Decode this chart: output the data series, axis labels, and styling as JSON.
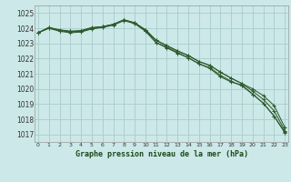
{
  "title": "Graphe pression niveau de la mer (hPa)",
  "background_color": "#cce8e8",
  "grid_color": "#aacccc",
  "line_color": "#2d5a2d",
  "ylim": [
    1016.5,
    1025.5
  ],
  "xlim": [
    -0.3,
    23.3
  ],
  "yticks": [
    1017,
    1018,
    1019,
    1020,
    1021,
    1022,
    1023,
    1024,
    1025
  ],
  "xticks": [
    0,
    1,
    2,
    3,
    4,
    5,
    6,
    7,
    8,
    9,
    10,
    11,
    12,
    13,
    14,
    15,
    16,
    17,
    18,
    19,
    20,
    21,
    22,
    23
  ],
  "series": [
    [
      1023.7,
      1024.0,
      1023.85,
      1023.8,
      1023.85,
      1024.05,
      1024.1,
      1024.25,
      1024.55,
      1024.35,
      1023.85,
      1023.05,
      1022.75,
      1022.4,
      1022.05,
      1021.65,
      1021.35,
      1020.8,
      1020.45,
      1020.25,
      1019.65,
      1019.05,
      1018.2,
      1017.15
    ],
    [
      1023.7,
      1024.05,
      1023.85,
      1023.75,
      1023.8,
      1024.0,
      1024.1,
      1024.25,
      1024.55,
      1024.35,
      1023.9,
      1023.2,
      1022.85,
      1022.5,
      1022.2,
      1021.8,
      1021.55,
      1021.1,
      1020.7,
      1020.35,
      1020.0,
      1019.55,
      1018.9,
      1017.45
    ],
    [
      1023.7,
      1024.05,
      1023.9,
      1023.8,
      1023.8,
      1024.0,
      1024.1,
      1024.25,
      1024.55,
      1024.35,
      1023.9,
      1023.2,
      1022.85,
      1022.5,
      1022.2,
      1021.8,
      1021.55,
      1021.1,
      1020.7,
      1020.35,
      1019.85,
      1019.3,
      1018.55,
      1017.25
    ],
    [
      1023.7,
      1024.0,
      1023.8,
      1023.7,
      1023.75,
      1023.95,
      1024.05,
      1024.2,
      1024.5,
      1024.3,
      1023.8,
      1023.05,
      1022.7,
      1022.35,
      1022.05,
      1021.65,
      1021.4,
      1020.9,
      1020.5,
      1020.2,
      1019.65,
      1019.05,
      1018.2,
      1017.1
    ]
  ]
}
